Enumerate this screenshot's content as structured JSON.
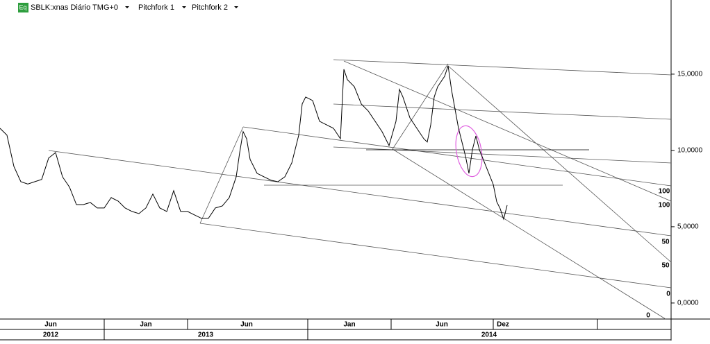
{
  "header": {
    "icon": "Eq",
    "symbol": "SBLK:xnas Diário TMG+0",
    "tools": [
      "Pitchfork 1",
      "Pitchfork 2"
    ]
  },
  "chart_data": {
    "type": "line",
    "x": [
      0,
      10,
      20,
      30,
      40,
      50,
      60,
      70,
      80,
      90,
      100,
      110,
      120,
      130,
      140,
      150,
      160,
      170,
      180,
      190,
      200,
      210,
      220,
      230,
      240,
      250,
      260,
      270,
      280,
      290,
      300,
      310,
      320,
      330,
      340,
      345,
      350,
      355,
      360,
      370,
      380,
      390,
      400,
      410,
      420,
      430,
      435,
      440,
      450,
      460,
      470,
      480,
      490,
      495,
      500,
      510,
      520,
      530,
      540,
      550,
      560,
      570,
      575,
      580,
      590,
      600,
      610,
      615,
      620,
      625,
      630,
      640,
      645,
      650,
      660,
      670,
      675,
      680,
      685,
      690,
      700,
      710,
      715,
      720,
      725,
      730
    ],
    "series": [
      {
        "color": "#000000",
        "values": [
          11.45,
          11.0,
          8.95,
          7.95,
          7.8,
          7.95,
          8.1,
          9.5,
          9.86,
          8.27,
          7.6,
          6.45,
          6.45,
          6.59,
          6.23,
          6.23,
          6.91,
          6.68,
          6.23,
          6.0,
          5.86,
          6.23,
          7.14,
          6.23,
          6.0,
          7.36,
          6.0,
          6.0,
          5.77,
          5.55,
          5.55,
          6.23,
          6.36,
          6.91,
          8.27,
          9.86,
          11.23,
          10.77,
          9.41,
          8.5,
          8.27,
          8.05,
          7.95,
          8.27,
          9.18,
          11.0,
          13.05,
          13.5,
          13.27,
          11.91,
          11.68,
          11.45,
          10.77,
          15.32,
          14.64,
          14.18,
          13.05,
          12.59,
          11.91,
          11.23,
          10.32,
          11.91,
          14.0,
          13.5,
          12.14,
          11.45,
          10.77,
          10.55,
          11.68,
          13.5,
          14.18,
          14.86,
          15.55,
          13.95,
          11.45,
          9.64,
          8.5,
          10.05,
          10.95,
          10.05,
          8.91,
          7.77,
          6.64,
          6.18,
          5.5,
          6.41
        ]
      }
    ],
    "xlim": [
      0,
      966
    ],
    "xticks": [
      {
        "value": 73,
        "label": "Jun"
      },
      {
        "value": 210,
        "label": "Jan"
      },
      {
        "value": 355,
        "label": "Jun"
      },
      {
        "value": 503,
        "label": "Jan"
      },
      {
        "value": 636,
        "label": "Jun"
      },
      {
        "value": 724,
        "label": "Dez"
      }
    ],
    "year_ticks": [
      {
        "value": 73,
        "label": "2012"
      },
      {
        "value": 296,
        "label": "2013"
      },
      {
        "value": 704,
        "label": "2014"
      }
    ],
    "ylim": [
      -1.05,
      19.86
    ],
    "yticks": [
      {
        "value": 0,
        "label": "0,0000"
      },
      {
        "value": 5,
        "label": "5,0000"
      },
      {
        "value": 10,
        "label": "10,0000"
      },
      {
        "value": 15,
        "label": "15,0000"
      }
    ],
    "annotations": [
      "100",
      "100",
      "50",
      "50",
      "0",
      "0"
    ]
  }
}
